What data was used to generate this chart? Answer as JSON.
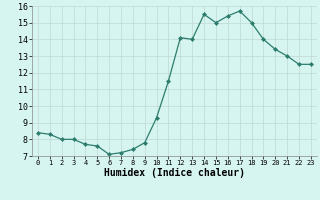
{
  "x": [
    0,
    1,
    2,
    3,
    4,
    5,
    6,
    7,
    8,
    9,
    10,
    11,
    12,
    13,
    14,
    15,
    16,
    17,
    18,
    19,
    20,
    21,
    22,
    23
  ],
  "y": [
    8.4,
    8.3,
    8.0,
    8.0,
    7.7,
    7.6,
    7.1,
    7.2,
    7.4,
    7.8,
    9.3,
    11.5,
    14.1,
    14.0,
    15.5,
    15.0,
    15.4,
    15.7,
    15.0,
    14.0,
    13.4,
    13.0,
    12.5,
    12.5
  ],
  "line_color": "#2d7d6e",
  "marker": "D",
  "marker_size": 2.0,
  "bg_color": "#d6f5f0",
  "grid_color": "#c0d8d4",
  "xlabel": "Humidex (Indice chaleur)",
  "xlabel_fontsize": 7,
  "tick_fontsize": 6,
  "ylim": [
    7,
    16
  ],
  "xlim": [
    -0.5,
    23.5
  ],
  "yticks": [
    7,
    8,
    9,
    10,
    11,
    12,
    13,
    14,
    15,
    16
  ],
  "xticks": [
    0,
    1,
    2,
    3,
    4,
    5,
    6,
    7,
    8,
    9,
    10,
    11,
    12,
    13,
    14,
    15,
    16,
    17,
    18,
    19,
    20,
    21,
    22,
    23
  ]
}
